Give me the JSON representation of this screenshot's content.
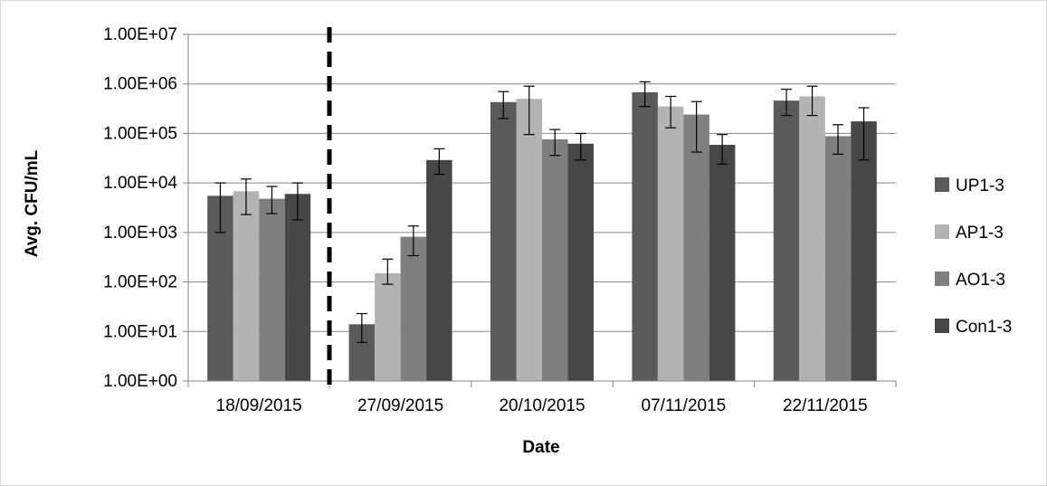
{
  "chart_data": {
    "type": "bar",
    "title": "",
    "xlabel": "Date",
    "ylabel": "Avg. CFU/mL",
    "y_scale": "log",
    "ylim": [
      1,
      10000000
    ],
    "y_tick_labels": [
      "1.00E+00",
      "1.00E+01",
      "1.00E+02",
      "1.00E+03",
      "1.00E+04",
      "1.00E+05",
      "1.00E+06",
      "1.00E+07"
    ],
    "grid": "horizontal major gridlines",
    "legend_position": "right",
    "categories": [
      "18/09/2015",
      "27/09/2015",
      "20/10/2015",
      "07/11/2015",
      "22/11/2015"
    ],
    "divider": "dashed vertical line between 18/09/2015 and 27/09/2015",
    "series": [
      {
        "name": "UP1-3",
        "color": "#5a5a5a",
        "values": [
          5500,
          14,
          430000,
          680000,
          460000
        ],
        "error_low": [
          1000,
          6,
          200000,
          350000,
          230000
        ],
        "error_high": [
          10000,
          23,
          700000,
          1100000,
          780000
        ]
      },
      {
        "name": "AP1-3",
        "color": "#b3b3b3",
        "values": [
          6800,
          150,
          500000,
          350000,
          560000
        ],
        "error_low": [
          2300,
          90,
          95000,
          130000,
          230000
        ],
        "error_high": [
          12000,
          290,
          900000,
          560000,
          900000
        ]
      },
      {
        "name": "AO1-3",
        "color": "#7f7f7f",
        "values": [
          4800,
          820,
          76000,
          240000,
          88000
        ],
        "error_low": [
          2400,
          340,
          36000,
          42000,
          38000
        ],
        "error_high": [
          8500,
          1350,
          120000,
          440000,
          150000
        ]
      },
      {
        "name": "Con1-3",
        "color": "#474747",
        "values": [
          6000,
          29000,
          62000,
          59000,
          175000
        ],
        "error_low": [
          1800,
          15000,
          29000,
          24000,
          29000
        ],
        "error_high": [
          10000,
          49000,
          100000,
          95000,
          330000
        ]
      }
    ]
  }
}
